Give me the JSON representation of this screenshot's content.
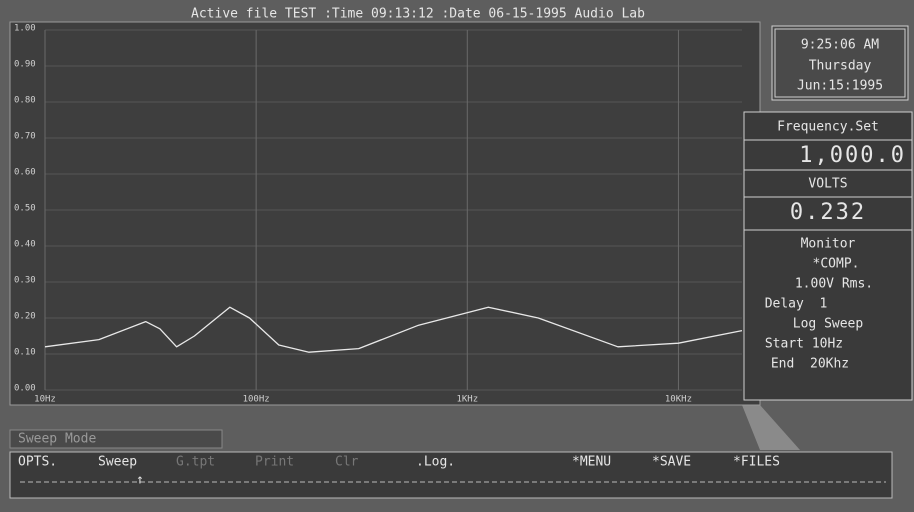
{
  "chart_data": {
    "type": "line",
    "title": "Active file TEST :Time 09:13:12 :Date 06-15-1995 Audio Lab",
    "x": [
      10,
      18,
      30,
      35,
      42,
      51,
      75,
      93,
      128,
      178,
      306,
      588,
      1257,
      2170,
      5170,
      10000,
      20000
    ],
    "values": [
      0.12,
      0.14,
      0.19,
      0.17,
      0.12,
      0.15,
      0.23,
      0.2,
      0.125,
      0.105,
      0.115,
      0.18,
      0.23,
      0.2,
      0.12,
      0.13,
      0.165
    ],
    "color": "#e8e8e8",
    "logx": true,
    "grid": true,
    "xlim": [
      10,
      20000
    ],
    "xticks": [
      {
        "value": 10,
        "label": "10Hz"
      },
      {
        "value": 100,
        "label": "100Hz"
      },
      {
        "value": 1000,
        "label": "1KHz"
      },
      {
        "value": 10000,
        "label": "10KHz"
      }
    ],
    "ylim": [
      0,
      1
    ],
    "yticks": [
      {
        "value": 0,
        "label": "0.00"
      },
      {
        "value": 0.1,
        "label": "0.10"
      },
      {
        "value": 0.2,
        "label": "0.20"
      },
      {
        "value": 0.3,
        "label": "0.30"
      },
      {
        "value": 0.4,
        "label": "0.40"
      },
      {
        "value": 0.5,
        "label": "0.50"
      },
      {
        "value": 0.6,
        "label": "0.60"
      },
      {
        "value": 0.7,
        "label": "0.70"
      },
      {
        "value": 0.8,
        "label": "0.80"
      },
      {
        "value": 0.9,
        "label": "0.90"
      },
      {
        "value": 1,
        "label": "1.00"
      }
    ]
  },
  "clock": {
    "time": "9:25:06 AM",
    "day": "Thursday",
    "date": "Jun:15:1995"
  },
  "panel": {
    "freq_label": "Frequency.Set",
    "freq_value": "1,000.0",
    "volts_label": "VOLTS",
    "volts_value": "0.232",
    "monitor": [
      "Monitor",
      "*COMP.",
      "1.00V Rms.",
      "Delay  1",
      "Log Sweep",
      "Start 10Hz",
      "End  20Khz"
    ]
  },
  "status": "Sweep Mode",
  "menu": [
    "OPTS.",
    "Sweep",
    "G.tpt",
    "Print",
    "Clr",
    ".Log.",
    "*MENU",
    "*SAVE",
    "*FILES"
  ]
}
